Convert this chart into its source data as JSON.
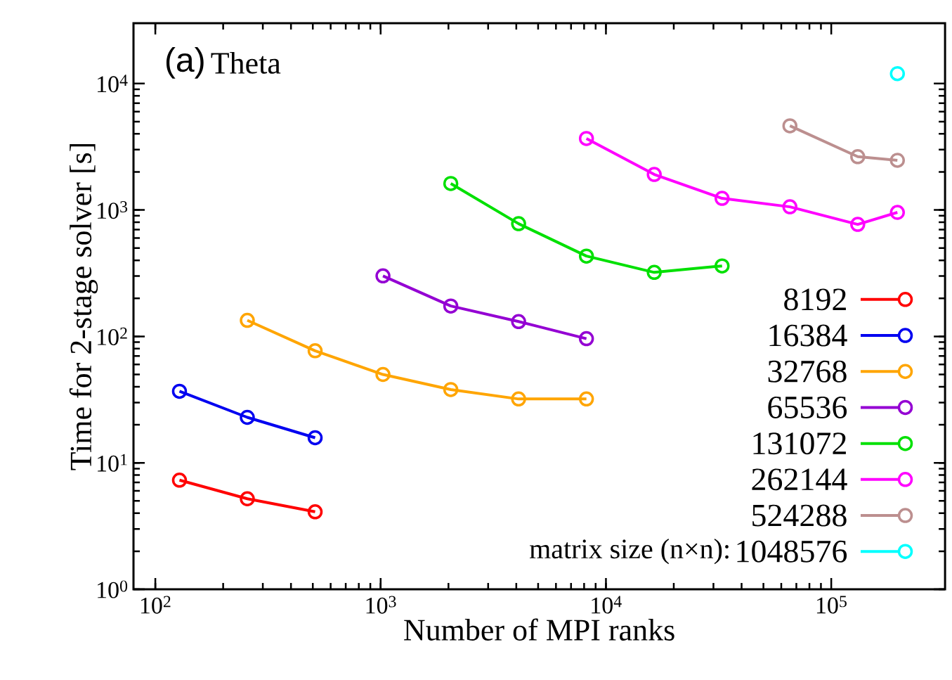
{
  "chart_data": {
    "type": "line",
    "title": "Theta",
    "annotations": [
      "(a)"
    ],
    "xlabel": "Number of MPI ranks",
    "ylabel": "Time for 2-stage solver [s]",
    "legend_title": "matrix size (n×n):",
    "log": "xy",
    "marker": "circle",
    "legend": "bottom right",
    "xlim": [
      80,
      320000
    ],
    "ylim": [
      1,
      30000
    ],
    "xticks": [
      {
        "value": 100,
        "label": "10$^{2}$"
      },
      {
        "value": 1000,
        "label": "10$^{3}$"
      },
      {
        "value": 10000,
        "label": "10$^{4}$"
      },
      {
        "value": 100000,
        "label": "10$^{5}$"
      }
    ],
    "yticks": [
      {
        "value": 1,
        "label": "10$^{0}$"
      },
      {
        "value": 10,
        "label": "10$^{1}$"
      },
      {
        "value": 100,
        "label": "10$^{2}$"
      },
      {
        "value": 1000,
        "label": "10$^{3}$"
      },
      {
        "value": 10000,
        "label": "10$^{4}$"
      }
    ],
    "series": [
      {
        "name": "8192",
        "color": "#ff0000",
        "x": [
          128,
          256,
          512
        ],
        "values": [
          7.3,
          5.2,
          4.1
        ]
      },
      {
        "name": "16384",
        "color": "#0000f0",
        "x": [
          128,
          256,
          512
        ],
        "values": [
          36.8,
          22.9,
          15.8
        ]
      },
      {
        "name": "32768",
        "color": "#ffa500",
        "x": [
          256,
          512,
          1024,
          2048,
          4096,
          8192
        ],
        "values": [
          134,
          77,
          50,
          38,
          32,
          32
        ]
      },
      {
        "name": "65536",
        "color": "#9400d3",
        "x": [
          1024,
          2048,
          4096,
          8192
        ],
        "values": [
          301,
          174,
          131,
          96
        ]
      },
      {
        "name": "131072",
        "color": "#00e000",
        "x": [
          2048,
          4096,
          8192,
          16384,
          32768
        ],
        "values": [
          1620,
          779,
          432,
          321,
          361
        ]
      },
      {
        "name": "262144",
        "color": "#ff00ff",
        "x": [
          8192,
          16384,
          32768,
          65536,
          131072,
          196608
        ],
        "values": [
          3675,
          1910,
          1236,
          1059,
          769,
          957
        ]
      },
      {
        "name": "524288",
        "color": "#bc8f8f",
        "x": [
          65536,
          131072,
          196608
        ],
        "values": [
          4630,
          2640,
          2470
        ]
      },
      {
        "name": "1048576",
        "color": "#00ffff",
        "x": [
          196608
        ],
        "values": [
          11970
        ]
      }
    ]
  }
}
